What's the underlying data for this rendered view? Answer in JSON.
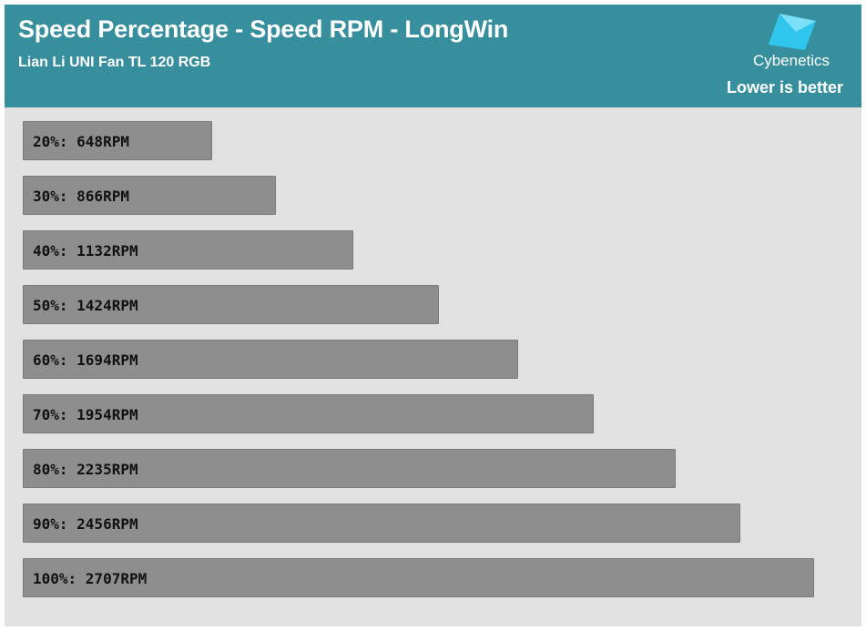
{
  "header": {
    "title": "Speed Percentage - Speed RPM - LongWin",
    "subtitle": "Lian Li UNI Fan TL 120 RGB",
    "brand": "Cybenetics",
    "note": "Lower is better"
  },
  "colors": {
    "header_bg": "#378e9c",
    "plot_bg": "#e1e1e1",
    "bar_fill": "#8e8e8e",
    "logo_cyan": "#2ec8f0"
  },
  "chart_data": {
    "type": "bar",
    "orientation": "horizontal",
    "title": "Speed Percentage - Speed RPM - LongWin",
    "subtitle": "Lian Li UNI Fan TL 120 RGB",
    "categories": [
      "20%",
      "30%",
      "40%",
      "50%",
      "60%",
      "70%",
      "80%",
      "90%",
      "100%"
    ],
    "values": [
      648,
      866,
      1132,
      1424,
      1694,
      1954,
      2235,
      2456,
      2707
    ],
    "unit": "RPM",
    "labels": [
      "20%: 648RPM",
      "30%: 866RPM",
      "40%: 1132RPM",
      "50%: 1424RPM",
      "60%: 1694RPM",
      "70%: 1954RPM",
      "80%: 2235RPM",
      "90%: 2456RPM",
      "100%: 2707RPM"
    ],
    "xlim": [
      0,
      2707
    ],
    "grid": false,
    "legend": "none",
    "xlabel": "",
    "ylabel": ""
  }
}
